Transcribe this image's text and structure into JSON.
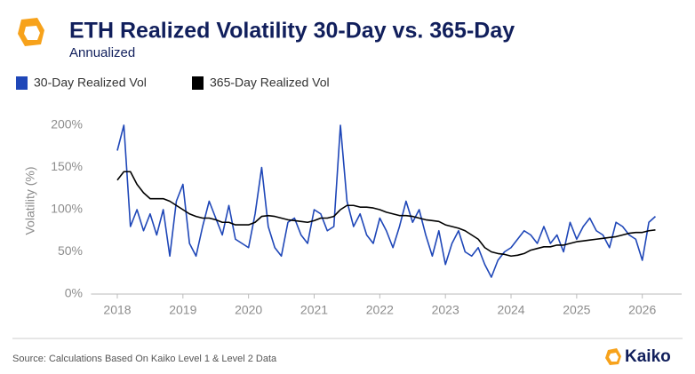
{
  "chart_data": {
    "type": "line",
    "title": "ETH Realized Volatility 30-Day vs. 365-Day",
    "subtitle": "Annualized",
    "y_label": "Volatility (%)",
    "source": "Source: Calculations Based On Kaiko Level 1 & Level 2 Data",
    "brand": "Kaiko",
    "x": [
      2018.0,
      2018.1,
      2018.2,
      2018.3,
      2018.4,
      2018.5,
      2018.6,
      2018.7,
      2018.8,
      2018.9,
      2019.0,
      2019.1,
      2019.2,
      2019.3,
      2019.4,
      2019.5,
      2019.6,
      2019.7,
      2019.8,
      2019.9,
      2020.0,
      2020.1,
      2020.2,
      2020.3,
      2020.4,
      2020.5,
      2020.6,
      2020.7,
      2020.8,
      2020.9,
      2021.0,
      2021.1,
      2021.2,
      2021.3,
      2021.4,
      2021.5,
      2021.6,
      2021.7,
      2021.8,
      2021.9,
      2022.0,
      2022.1,
      2022.2,
      2022.3,
      2022.4,
      2022.5,
      2022.6,
      2022.7,
      2022.8,
      2022.9,
      2023.0,
      2023.1,
      2023.2,
      2023.3,
      2023.4,
      2023.5,
      2023.6,
      2023.7,
      2023.8,
      2023.9,
      2024.0,
      2024.1,
      2024.2,
      2024.3,
      2024.4,
      2024.5,
      2024.6,
      2024.7,
      2024.8,
      2024.9,
      2025.0,
      2025.1,
      2025.2,
      2025.3,
      2025.4,
      2025.5,
      2025.6,
      2025.7,
      2025.8,
      2025.9,
      2026.0,
      2026.1,
      2026.2
    ],
    "series": [
      {
        "name": "30-Day Realized Vol",
        "color": "#1f47b8",
        "values": [
          170,
          200,
          80,
          100,
          75,
          95,
          70,
          100,
          45,
          110,
          130,
          60,
          45,
          80,
          110,
          90,
          70,
          105,
          65,
          60,
          55,
          95,
          150,
          80,
          55,
          45,
          85,
          90,
          70,
          60,
          100,
          95,
          75,
          80,
          200,
          110,
          80,
          95,
          70,
          60,
          90,
          75,
          55,
          80,
          110,
          85,
          100,
          70,
          45,
          75,
          35,
          60,
          75,
          50,
          45,
          55,
          35,
          20,
          40,
          50,
          55,
          65,
          75,
          70,
          60,
          80,
          60,
          70,
          50,
          85,
          65,
          80,
          90,
          75,
          70,
          55,
          85,
          80,
          70,
          65,
          40,
          85,
          92
        ]
      },
      {
        "name": "365-Day Realized Vol",
        "color": "#000000",
        "values": [
          135,
          145,
          145,
          130,
          120,
          113,
          113,
          113,
          110,
          105,
          100,
          95,
          92,
          90,
          90,
          88,
          85,
          85,
          82,
          82,
          82,
          85,
          92,
          93,
          92,
          90,
          88,
          87,
          86,
          85,
          87,
          90,
          90,
          92,
          100,
          105,
          105,
          103,
          103,
          102,
          100,
          97,
          95,
          93,
          93,
          92,
          90,
          88,
          87,
          86,
          82,
          80,
          78,
          75,
          70,
          65,
          55,
          50,
          48,
          47,
          45,
          46,
          48,
          52,
          54,
          56,
          56,
          58,
          58,
          60,
          62,
          63,
          64,
          65,
          66,
          67,
          68,
          70,
          72,
          73,
          73,
          75,
          76
        ]
      }
    ],
    "xlim": [
      2017.6,
      2026.6
    ],
    "xticks": [
      2018,
      2019,
      2020,
      2021,
      2022,
      2023,
      2024,
      2025,
      2026
    ],
    "ylim": [
      0,
      210
    ],
    "yticks": [
      {
        "value": 0,
        "label": "0%"
      },
      {
        "value": 50,
        "label": "50%"
      },
      {
        "value": 100,
        "label": "100%"
      },
      {
        "value": 150,
        "label": "150%"
      },
      {
        "value": 200,
        "label": "200%"
      }
    ],
    "grid": false
  }
}
